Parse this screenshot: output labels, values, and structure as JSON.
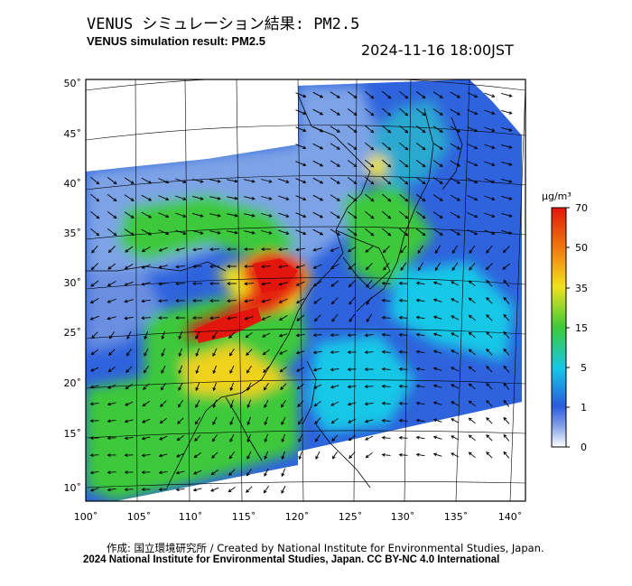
{
  "header": {
    "title_ja": "VENUS シミュレーション結果: PM2.5",
    "title_en": "VENUS simulation result: PM2.5",
    "timestamp": "2024-11-16 18:00JST"
  },
  "map": {
    "lon_ticks": [
      "100˚",
      "105˚",
      "110˚",
      "115˚",
      "120˚",
      "125˚",
      "130˚",
      "135˚",
      "140˚"
    ],
    "lat_ticks": [
      "50˚",
      "45˚",
      "40˚",
      "35˚",
      "30˚",
      "25˚",
      "20˚",
      "15˚",
      "10˚"
    ],
    "lon_range": [
      100,
      142
    ],
    "lat_range": [
      9,
      51
    ]
  },
  "colorbar": {
    "unit": "μg/m³",
    "tick_labels": [
      "0",
      "1",
      "5",
      "15",
      "35",
      "50",
      "70"
    ],
    "colors": [
      "#ffffff",
      "#2b5bdc",
      "#15c8e6",
      "#3ec93a",
      "#f0e21c",
      "#f07a0e",
      "#e3160e"
    ]
  },
  "footer": {
    "credit_line1": "作成: 国立環境研究所 / Created by National Institute for Environmental Studies, Japan.",
    "credit_line2": "2024 National Institute for Environmental Studies, Japan. CC BY-NC 4.0 International"
  }
}
